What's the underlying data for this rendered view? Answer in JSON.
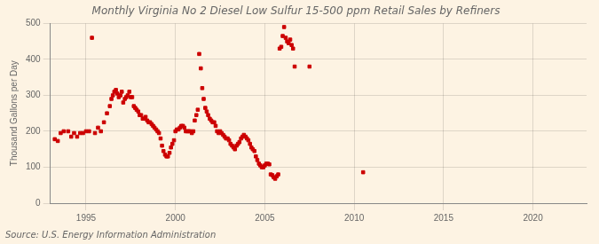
{
  "chart_data": {
    "type": "scatter",
    "title": "Monthly Virginia No 2 Diesel Low Sulfur 15-500 ppm Retail Sales by Refiners",
    "ylabel": "Thousand Gallons per Day",
    "annotations": [
      "Source: U.S. Energy Information Administration"
    ],
    "color": "#cc0000",
    "marker": "square",
    "grid": true,
    "xlim": [
      1993.0,
      2023.0
    ],
    "ylim": [
      0,
      500
    ],
    "xticks": [
      1995,
      2000,
      2005,
      2010,
      2015,
      2020
    ],
    "yticks": [
      0,
      100,
      200,
      300,
      400,
      500
    ],
    "x": [
      1993.25,
      1993.42,
      1993.58,
      1993.75,
      1994.0,
      1994.17,
      1994.33,
      1994.5,
      1994.67,
      1994.83,
      1995.0,
      1995.17,
      1995.33,
      1995.5,
      1995.67,
      1995.83,
      1996.0,
      1996.17,
      1996.33,
      1996.42,
      1996.5,
      1996.58,
      1996.67,
      1996.75,
      1996.83,
      1996.92,
      1997.0,
      1997.08,
      1997.17,
      1997.25,
      1997.33,
      1997.42,
      1997.5,
      1997.58,
      1997.67,
      1997.75,
      1997.83,
      1997.92,
      1998.0,
      1998.08,
      1998.17,
      1998.25,
      1998.33,
      1998.42,
      1998.5,
      1998.58,
      1998.67,
      1998.75,
      1998.83,
      1998.92,
      1999.0,
      1999.08,
      1999.17,
      1999.25,
      1999.33,
      1999.42,
      1999.5,
      1999.58,
      1999.67,
      1999.75,
      1999.83,
      1999.92,
      2000.0,
      2000.08,
      2000.17,
      2000.25,
      2000.33,
      2000.42,
      2000.5,
      2000.58,
      2000.67,
      2000.75,
      2000.83,
      2000.92,
      2001.0,
      2001.08,
      2001.17,
      2001.25,
      2001.33,
      2001.42,
      2001.5,
      2001.58,
      2001.67,
      2001.75,
      2001.83,
      2001.92,
      2002.0,
      2002.08,
      2002.17,
      2002.25,
      2002.33,
      2002.42,
      2002.5,
      2002.58,
      2002.67,
      2002.75,
      2002.83,
      2002.92,
      2003.0,
      2003.08,
      2003.17,
      2003.25,
      2003.33,
      2003.42,
      2003.5,
      2003.58,
      2003.67,
      2003.75,
      2003.83,
      2003.92,
      2004.0,
      2004.08,
      2004.17,
      2004.25,
      2004.33,
      2004.42,
      2004.5,
      2004.58,
      2004.67,
      2004.75,
      2004.83,
      2004.92,
      2005.0,
      2005.08,
      2005.17,
      2005.25,
      2005.33,
      2005.42,
      2005.5,
      2005.58,
      2005.67,
      2005.75,
      2005.83,
      2005.92,
      2006.0,
      2006.08,
      2006.17,
      2006.25,
      2006.33,
      2006.42,
      2006.5,
      2006.58,
      2006.67,
      2007.5,
      2010.5
    ],
    "values": [
      178,
      173,
      195,
      200,
      200,
      185,
      195,
      185,
      195,
      195,
      200,
      200,
      460,
      195,
      210,
      200,
      225,
      250,
      270,
      290,
      300,
      310,
      315,
      305,
      295,
      300,
      310,
      280,
      290,
      295,
      300,
      310,
      295,
      295,
      270,
      265,
      260,
      255,
      245,
      245,
      235,
      235,
      240,
      230,
      225,
      225,
      220,
      215,
      210,
      205,
      200,
      195,
      180,
      160,
      145,
      135,
      130,
      130,
      140,
      155,
      165,
      175,
      200,
      205,
      205,
      210,
      215,
      215,
      210,
      200,
      200,
      200,
      200,
      195,
      200,
      230,
      245,
      260,
      415,
      375,
      320,
      290,
      265,
      255,
      245,
      235,
      230,
      225,
      225,
      215,
      200,
      195,
      200,
      195,
      190,
      185,
      180,
      180,
      175,
      165,
      160,
      155,
      150,
      160,
      165,
      170,
      180,
      185,
      190,
      185,
      180,
      175,
      165,
      155,
      150,
      145,
      130,
      120,
      110,
      105,
      100,
      100,
      105,
      110,
      110,
      108,
      80,
      78,
      72,
      68,
      75,
      80,
      430,
      435,
      465,
      490,
      460,
      450,
      445,
      455,
      440,
      430,
      380,
      380,
      86
    ]
  }
}
